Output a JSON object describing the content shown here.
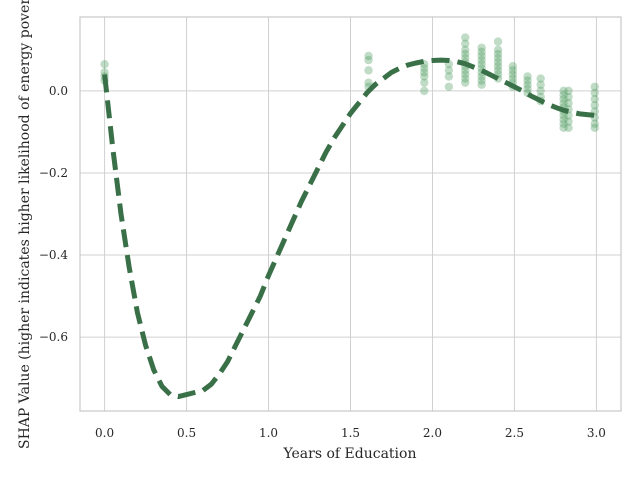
{
  "chart_data": {
    "type": "scatter",
    "title": "",
    "xlabel": "Years of Education",
    "ylabel": "SHAP Value (higher indicates higher likelihood of energy poverty)",
    "xlim": [
      -0.15,
      3.15
    ],
    "ylim": [
      -0.78,
      0.18
    ],
    "xticks": [
      0.0,
      0.5,
      1.0,
      1.5,
      2.0,
      2.5,
      3.0
    ],
    "xtick_labels": [
      "0.0",
      "0.5",
      "1.0",
      "1.5",
      "2.0",
      "2.5",
      "3.0"
    ],
    "yticks": [
      0.0,
      -0.2,
      -0.4,
      -0.6
    ],
    "ytick_labels": [
      "0.0",
      "−0.2",
      "−0.4",
      "−0.6"
    ],
    "grid": true,
    "legend": "none",
    "colors": {
      "points": "#4a9a5c",
      "trend": "#3a7048",
      "grid": "#d0d0d0",
      "axes": "#c8c8c8"
    },
    "scatter_clusters": [
      {
        "x": 0.0,
        "y": [
          0.065,
          0.045,
          0.035,
          0.025
        ]
      },
      {
        "x": 1.61,
        "y": [
          0.085,
          0.075,
          0.05,
          0.02,
          0.01
        ]
      },
      {
        "x": 1.95,
        "y": [
          0.065,
          0.055,
          0.045,
          0.035,
          0.02,
          0.0
        ]
      },
      {
        "x": 2.1,
        "y": [
          0.065,
          0.05,
          0.035,
          0.01
        ]
      },
      {
        "x": 2.2,
        "y": [
          0.13,
          0.115,
          0.1,
          0.09,
          0.08,
          0.07,
          0.06,
          0.05,
          0.04,
          0.03,
          0.02
        ]
      },
      {
        "x": 2.3,
        "y": [
          0.105,
          0.095,
          0.085,
          0.075,
          0.065,
          0.055,
          0.045,
          0.035,
          0.025,
          0.015
        ]
      },
      {
        "x": 2.4,
        "y": [
          0.12,
          0.1,
          0.09,
          0.08,
          0.07,
          0.06,
          0.05,
          0.04,
          0.03
        ]
      },
      {
        "x": 2.49,
        "y": [
          0.06,
          0.05,
          0.04,
          0.03,
          0.02,
          0.01
        ]
      },
      {
        "x": 2.58,
        "y": [
          0.035,
          0.025,
          0.015,
          0.005,
          -0.005
        ]
      },
      {
        "x": 2.66,
        "y": [
          0.03,
          0.015,
          0.0,
          -0.015,
          -0.025
        ]
      },
      {
        "x": 2.8,
        "y": [
          0.0,
          -0.01,
          -0.02,
          -0.03,
          -0.04,
          -0.05,
          -0.06,
          -0.07,
          -0.08,
          -0.09
        ]
      },
      {
        "x": 2.83,
        "y": [
          0.0,
          -0.015,
          -0.03,
          -0.045,
          -0.06,
          -0.075,
          -0.09
        ]
      },
      {
        "x": 2.99,
        "y": [
          0.01,
          -0.005,
          -0.02,
          -0.035,
          -0.05,
          -0.065,
          -0.08,
          -0.09
        ]
      }
    ],
    "trend_line": {
      "style": "dashed",
      "x": [
        0.0,
        0.05,
        0.1,
        0.15,
        0.2,
        0.25,
        0.3,
        0.35,
        0.4,
        0.45,
        0.5,
        0.55,
        0.6,
        0.65,
        0.7,
        0.75,
        0.8,
        0.85,
        0.9,
        0.95,
        1.0,
        1.05,
        1.1,
        1.15,
        1.2,
        1.25,
        1.3,
        1.35,
        1.4,
        1.45,
        1.5,
        1.55,
        1.6,
        1.65,
        1.7,
        1.75,
        1.8,
        1.85,
        1.9,
        1.95,
        2.0,
        2.05,
        2.1,
        2.15,
        2.2,
        2.25,
        2.3,
        2.35,
        2.4,
        2.45,
        2.5,
        2.55,
        2.6,
        2.65,
        2.7,
        2.75,
        2.8,
        2.85,
        2.9,
        2.95,
        3.0
      ],
      "y": [
        0.04,
        -0.14,
        -0.3,
        -0.43,
        -0.54,
        -0.62,
        -0.68,
        -0.72,
        -0.74,
        -0.745,
        -0.74,
        -0.735,
        -0.73,
        -0.715,
        -0.69,
        -0.66,
        -0.62,
        -0.58,
        -0.54,
        -0.5,
        -0.45,
        -0.405,
        -0.36,
        -0.315,
        -0.27,
        -0.23,
        -0.19,
        -0.15,
        -0.115,
        -0.085,
        -0.055,
        -0.03,
        -0.005,
        0.015,
        0.03,
        0.045,
        0.055,
        0.063,
        0.068,
        0.072,
        0.074,
        0.075,
        0.074,
        0.071,
        0.066,
        0.058,
        0.05,
        0.04,
        0.03,
        0.02,
        0.01,
        0.0,
        -0.012,
        -0.022,
        -0.032,
        -0.04,
        -0.047,
        -0.052,
        -0.056,
        -0.058,
        -0.06
      ]
    }
  }
}
